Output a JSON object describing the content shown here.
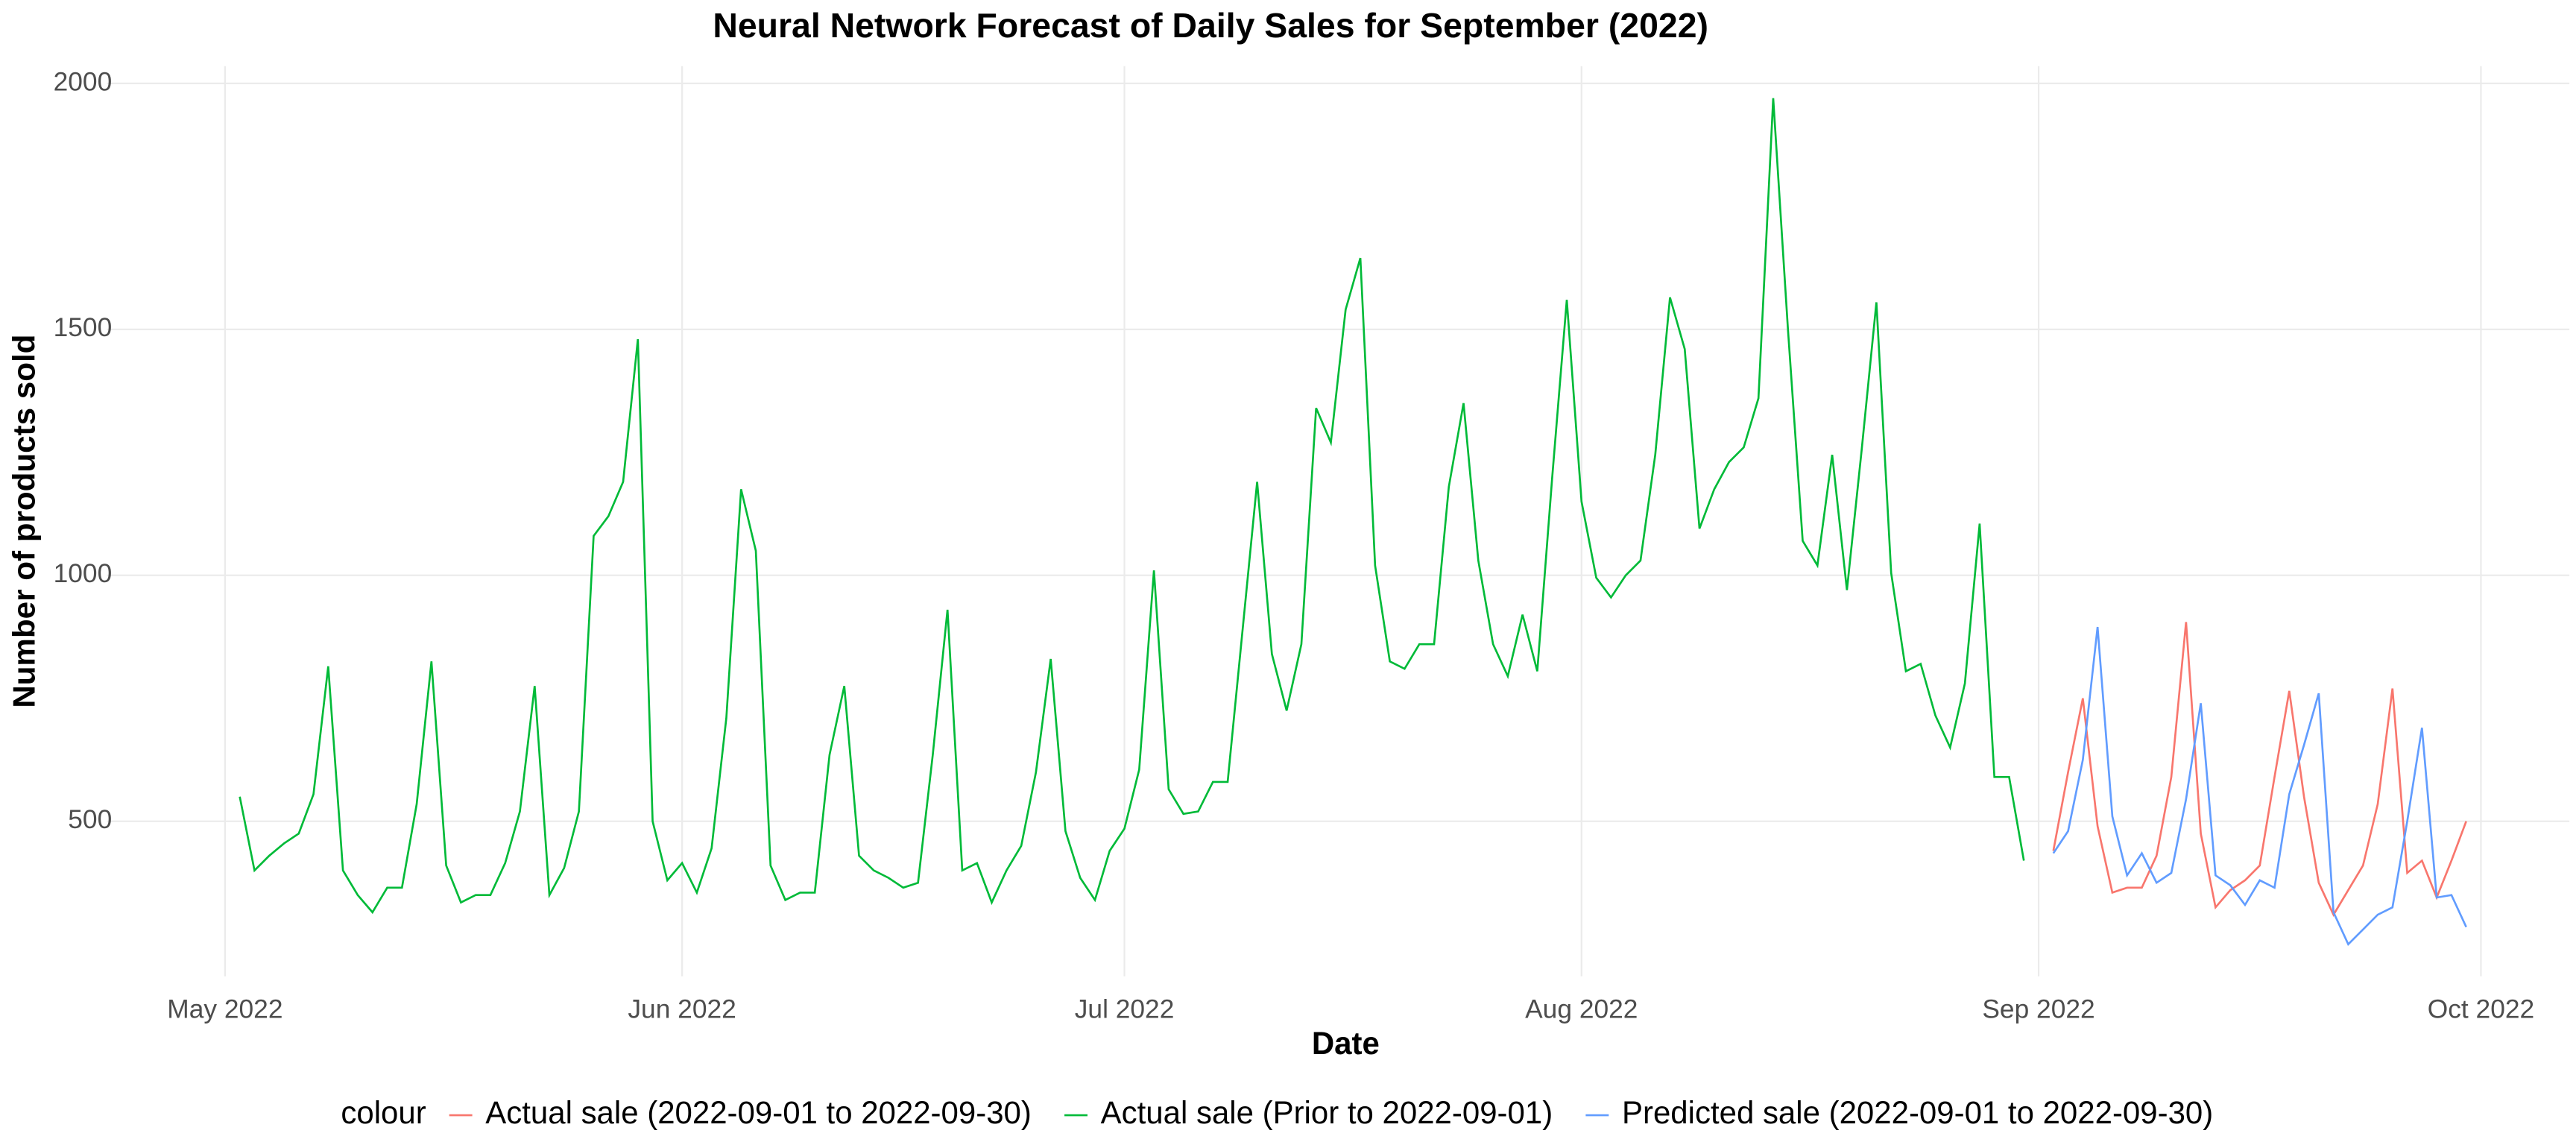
{
  "chart_data": {
    "type": "line",
    "title": "Neural Network Forecast of Daily Sales for September (2022)",
    "x_label": "Date",
    "y_label": "Number of products sold",
    "legend_title": "colour",
    "legend_position": "bottom",
    "grid": true,
    "xlim": [
      "2022-04-23",
      "2022-10-07"
    ],
    "xticks": [
      {
        "value": "2022-05-01",
        "label": "May 2022"
      },
      {
        "value": "2022-06-01",
        "label": "Jun 2022"
      },
      {
        "value": "2022-07-01",
        "label": "Jul 2022"
      },
      {
        "value": "2022-08-01",
        "label": "Aug 2022"
      },
      {
        "value": "2022-09-01",
        "label": "Sep 2022"
      },
      {
        "value": "2022-10-01",
        "label": "Oct 2022"
      }
    ],
    "ylim": [
      185,
      2035
    ],
    "yticks": [
      500,
      1000,
      1500,
      2000
    ],
    "series": [
      {
        "name": "Actual sale (2022-09-01 to 2022-09-30)",
        "color": "#F8766D",
        "x": [
          "2022-09-02",
          "2022-09-03",
          "2022-09-04",
          "2022-09-05",
          "2022-09-06",
          "2022-09-07",
          "2022-09-08",
          "2022-09-09",
          "2022-09-10",
          "2022-09-11",
          "2022-09-12",
          "2022-09-13",
          "2022-09-14",
          "2022-09-15",
          "2022-09-16",
          "2022-09-17",
          "2022-09-18",
          "2022-09-19",
          "2022-09-20",
          "2022-09-21",
          "2022-09-22",
          "2022-09-23",
          "2022-09-24",
          "2022-09-25",
          "2022-09-26",
          "2022-09-27",
          "2022-09-28",
          "2022-09-29",
          "2022-09-30"
        ],
        "values": [
          440,
          600,
          750,
          490,
          355,
          365,
          365,
          430,
          590,
          905,
          475,
          325,
          360,
          380,
          410,
          590,
          765,
          550,
          375,
          310,
          360,
          410,
          535,
          770,
          395,
          420,
          345,
          420,
          500
        ]
      },
      {
        "name": "Actual sale (Prior to 2022-09-01)",
        "color": "#00BA38",
        "x": [
          "2022-05-02",
          "2022-05-03",
          "2022-05-04",
          "2022-05-05",
          "2022-05-06",
          "2022-05-07",
          "2022-05-08",
          "2022-05-09",
          "2022-05-10",
          "2022-05-11",
          "2022-05-12",
          "2022-05-13",
          "2022-05-14",
          "2022-05-15",
          "2022-05-16",
          "2022-05-17",
          "2022-05-18",
          "2022-05-19",
          "2022-05-20",
          "2022-05-21",
          "2022-05-22",
          "2022-05-23",
          "2022-05-24",
          "2022-05-25",
          "2022-05-26",
          "2022-05-27",
          "2022-05-28",
          "2022-05-29",
          "2022-05-30",
          "2022-05-31",
          "2022-06-01",
          "2022-06-02",
          "2022-06-03",
          "2022-06-04",
          "2022-06-05",
          "2022-06-06",
          "2022-06-07",
          "2022-06-08",
          "2022-06-09",
          "2022-06-10",
          "2022-06-11",
          "2022-06-12",
          "2022-06-13",
          "2022-06-14",
          "2022-06-15",
          "2022-06-16",
          "2022-06-17",
          "2022-06-18",
          "2022-06-19",
          "2022-06-20",
          "2022-06-21",
          "2022-06-22",
          "2022-06-23",
          "2022-06-24",
          "2022-06-25",
          "2022-06-26",
          "2022-06-27",
          "2022-06-28",
          "2022-06-29",
          "2022-06-30",
          "2022-07-01",
          "2022-07-02",
          "2022-07-03",
          "2022-07-04",
          "2022-07-05",
          "2022-07-06",
          "2022-07-07",
          "2022-07-08",
          "2022-07-09",
          "2022-07-10",
          "2022-07-11",
          "2022-07-12",
          "2022-07-13",
          "2022-07-14",
          "2022-07-15",
          "2022-07-16",
          "2022-07-17",
          "2022-07-18",
          "2022-07-19",
          "2022-07-20",
          "2022-07-21",
          "2022-07-22",
          "2022-07-23",
          "2022-07-24",
          "2022-07-25",
          "2022-07-26",
          "2022-07-27",
          "2022-07-28",
          "2022-07-29",
          "2022-07-30",
          "2022-07-31",
          "2022-08-01",
          "2022-08-02",
          "2022-08-03",
          "2022-08-04",
          "2022-08-05",
          "2022-08-06",
          "2022-08-07",
          "2022-08-08",
          "2022-08-09",
          "2022-08-10",
          "2022-08-11",
          "2022-08-12",
          "2022-08-13",
          "2022-08-14",
          "2022-08-15",
          "2022-08-16",
          "2022-08-17",
          "2022-08-18",
          "2022-08-19",
          "2022-08-20",
          "2022-08-21",
          "2022-08-22",
          "2022-08-23",
          "2022-08-24",
          "2022-08-25",
          "2022-08-26",
          "2022-08-27",
          "2022-08-28",
          "2022-08-29",
          "2022-08-30",
          "2022-08-31"
        ],
        "values": [
          550,
          400,
          430,
          455,
          475,
          555,
          815,
          400,
          350,
          315,
          365,
          365,
          535,
          825,
          410,
          335,
          350,
          350,
          415,
          520,
          775,
          350,
          405,
          520,
          1080,
          1120,
          1190,
          1480,
          500,
          380,
          415,
          355,
          445,
          710,
          1175,
          1050,
          410,
          340,
          355,
          355,
          635,
          775,
          430,
          400,
          385,
          365,
          375,
          635,
          930,
          400,
          415,
          335,
          400,
          450,
          600,
          830,
          480,
          385,
          340,
          440,
          485,
          605,
          1010,
          565,
          515,
          520,
          580,
          580,
          885,
          1190,
          840,
          725,
          860,
          1340,
          1270,
          1540,
          1645,
          1020,
          825,
          810,
          860,
          860,
          1180,
          1350,
          1030,
          860,
          795,
          920,
          805,
          1195,
          1560,
          1150,
          995,
          955,
          1000,
          1030,
          1245,
          1565,
          1460,
          1095,
          1175,
          1230,
          1260,
          1360,
          1970,
          1500,
          1070,
          1020,
          1245,
          970,
          1255,
          1555,
          1005,
          805,
          820,
          715,
          650,
          780,
          1105,
          590,
          590,
          420
        ]
      },
      {
        "name": "Predicted sale (2022-09-01 to 2022-09-30)",
        "color": "#619CFF",
        "x": [
          "2022-09-02",
          "2022-09-03",
          "2022-09-04",
          "2022-09-05",
          "2022-09-06",
          "2022-09-07",
          "2022-09-08",
          "2022-09-09",
          "2022-09-10",
          "2022-09-11",
          "2022-09-12",
          "2022-09-13",
          "2022-09-14",
          "2022-09-15",
          "2022-09-16",
          "2022-09-17",
          "2022-09-18",
          "2022-09-19",
          "2022-09-20",
          "2022-09-21",
          "2022-09-22",
          "2022-09-23",
          "2022-09-24",
          "2022-09-25",
          "2022-09-26",
          "2022-09-27",
          "2022-09-28",
          "2022-09-29",
          "2022-09-30"
        ],
        "values": [
          435,
          480,
          625,
          895,
          510,
          390,
          435,
          375,
          395,
          545,
          740,
          390,
          370,
          330,
          380,
          365,
          555,
          655,
          760,
          315,
          250,
          280,
          310,
          325,
          500,
          690,
          345,
          350,
          285
        ]
      }
    ]
  }
}
